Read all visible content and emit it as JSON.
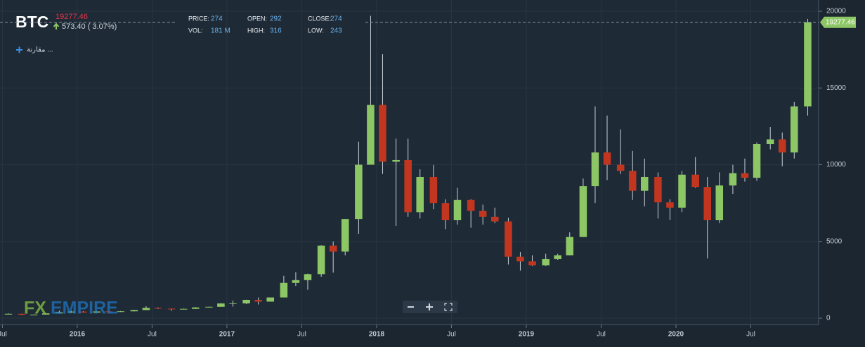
{
  "header": {
    "symbol": "BTC",
    "price": 19277.46,
    "change": "573.40 ( 3.07%)",
    "stats": [
      {
        "label": "PRICE:",
        "value": 274
      },
      {
        "label": "OPEN:",
        "value": 292
      },
      {
        "label": "CLOSE:",
        "value": 274
      },
      {
        "label": "VOL:",
        "value": "181 M"
      },
      {
        "label": "HIGH:",
        "value": 316
      },
      {
        "label": "LOW:",
        "value": 243
      }
    ],
    "compare": "مقارنة ..."
  },
  "watermark": {
    "left": "FX",
    "right": "EMPIRE"
  },
  "chart_data": {
    "type": "candlestick",
    "x": [
      2015.54,
      2015.63,
      2015.71,
      2015.79,
      2015.88,
      2015.96,
      2016.04,
      2016.13,
      2016.21,
      2016.29,
      2016.38,
      2016.46,
      2016.54,
      2016.63,
      2016.71,
      2016.79,
      2016.88,
      2016.96,
      2017.04,
      2017.13,
      2017.21,
      2017.29,
      2017.38,
      2017.46,
      2017.54,
      2017.63,
      2017.71,
      2017.79,
      2017.88,
      2017.96,
      2018.04,
      2018.13,
      2018.21,
      2018.29,
      2018.38,
      2018.46,
      2018.54,
      2018.63,
      2018.71,
      2018.79,
      2018.88,
      2018.96,
      2019.04,
      2019.13,
      2019.21,
      2019.29,
      2019.38,
      2019.46,
      2019.54,
      2019.63,
      2019.71,
      2019.79,
      2019.88,
      2019.96,
      2020.04,
      2020.13,
      2020.21,
      2020.29,
      2020.38,
      2020.46,
      2020.54,
      2020.63,
      2020.71,
      2020.79,
      2020.88
    ],
    "open": [
      260,
      285,
      230,
      236,
      314,
      378,
      430,
      370,
      437,
      416,
      448,
      531,
      673,
      624,
      575,
      609,
      700,
      742,
      963,
      970,
      1190,
      1080,
      1350,
      2300,
      2480,
      2870,
      4730,
      4340,
      6450,
      10000,
      13900,
      10200,
      10300,
      6900,
      9200,
      7500,
      6400,
      7700,
      7000,
      6600,
      6300,
      4000,
      3700,
      3450,
      3850,
      4100,
      5300,
      8600,
      10800,
      10000,
      9600,
      8300,
      9200,
      7550,
      7200,
      9350,
      8550,
      6400,
      8650,
      9450,
      9150,
      11350,
      11650,
      10800,
      13800
    ],
    "high": [
      315,
      285,
      245,
      330,
      500,
      465,
      460,
      440,
      440,
      470,
      550,
      780,
      700,
      630,
      630,
      720,
      750,
      980,
      1150,
      1200,
      1350,
      1350,
      2760,
      3000,
      2900,
      4750,
      5000,
      6450,
      11500,
      19700,
      17200,
      11700,
      11700,
      9700,
      9990,
      7750,
      8500,
      7750,
      7400,
      7200,
      6550,
      4300,
      4100,
      4200,
      4200,
      5600,
      9100,
      13800,
      13200,
      12300,
      10900,
      10400,
      9500,
      7750,
      9600,
      10500,
      9200,
      9500,
      10000,
      10400,
      11450,
      12450,
      12100,
      14100,
      19500
    ],
    "low": [
      260,
      200,
      225,
      236,
      300,
      350,
      360,
      365,
      400,
      410,
      440,
      530,
      600,
      480,
      570,
      605,
      690,
      740,
      750,
      920,
      890,
      1080,
      1350,
      2100,
      1850,
      2700,
      2970,
      4100,
      5500,
      10000,
      9400,
      6000,
      6600,
      6500,
      7100,
      5800,
      6100,
      5900,
      6100,
      6200,
      3500,
      3100,
      3400,
      3400,
      3800,
      4100,
      5300,
      7500,
      9000,
      9400,
      7700,
      7300,
      6500,
      6400,
      6900,
      8500,
      3900,
      6200,
      8100,
      8900,
      8950,
      11000,
      9900,
      10400,
      13200
    ],
    "close": [
      285,
      230,
      236,
      314,
      378,
      430,
      370,
      437,
      416,
      448,
      531,
      673,
      624,
      575,
      609,
      700,
      742,
      963,
      970,
      1190,
      1080,
      1350,
      2300,
      2480,
      2870,
      4730,
      4340,
      6450,
      10000,
      13900,
      10200,
      10300,
      6900,
      9200,
      7500,
      6400,
      7700,
      7000,
      6600,
      6300,
      4000,
      3700,
      3450,
      3850,
      4100,
      5300,
      8600,
      10800,
      10000,
      9600,
      8300,
      9200,
      7550,
      7200,
      9350,
      8550,
      6400,
      8650,
      9450,
      9150,
      11350,
      11650,
      10800,
      13800,
      19277.46
    ],
    "up_color": "#8dc765",
    "down_color": "#c2361f",
    "xlim": [
      2015.484,
      2020.953
    ],
    "ylim": [
      0,
      20000
    ],
    "xticks": [
      {
        "value": 2015.5,
        "label": "Jul"
      },
      2016,
      {
        "value": 2016.5,
        "label": "Jul"
      },
      2017,
      {
        "value": 2017.5,
        "label": "Jul"
      },
      2018,
      {
        "value": 2018.5,
        "label": "Jul"
      },
      2019,
      {
        "value": 2019.5,
        "label": "Jul"
      },
      2020,
      {
        "value": 2020.5,
        "label": "Jul"
      }
    ],
    "yticks": [
      0,
      5000,
      10000,
      15000,
      20000
    ],
    "grid": true
  }
}
